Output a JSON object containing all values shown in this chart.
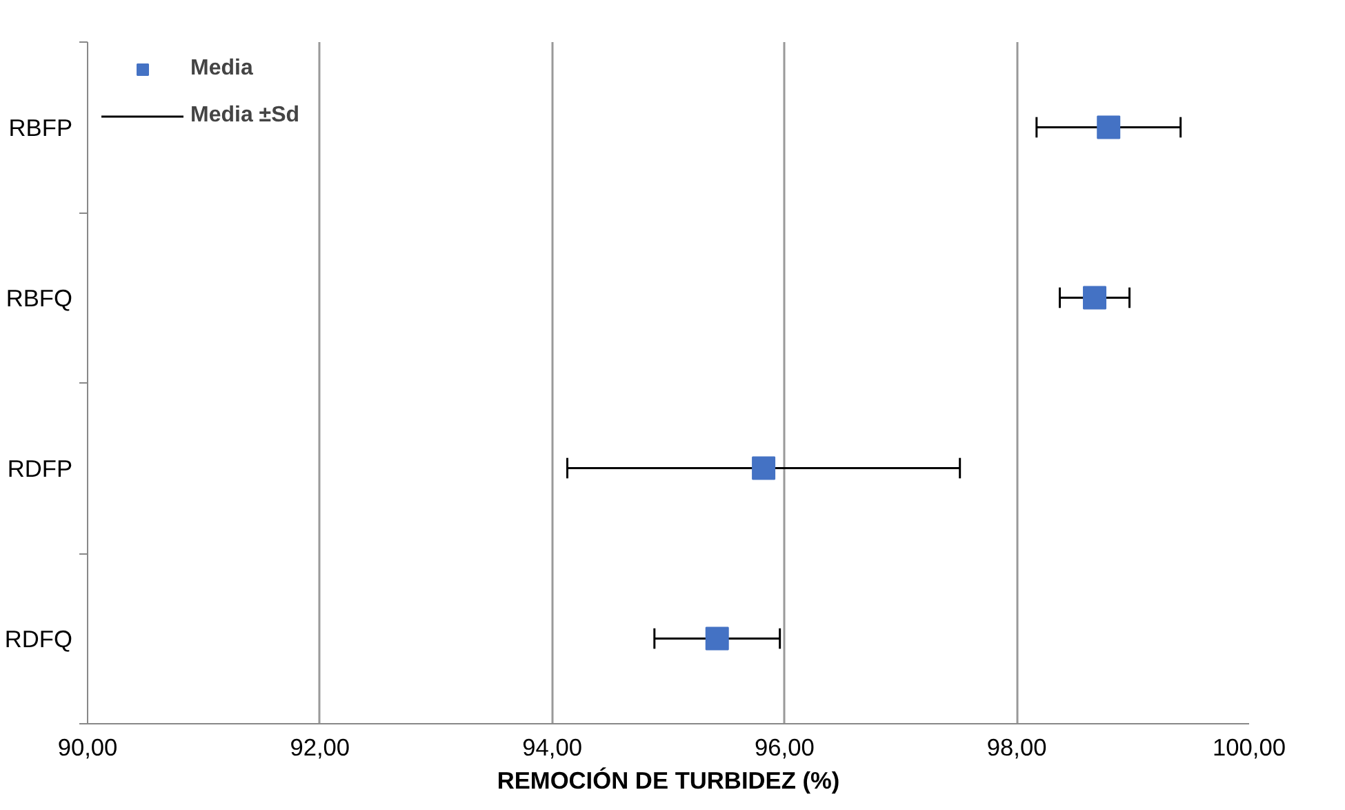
{
  "chart_data": {
    "type": "scatter",
    "orientation": "horizontal",
    "xlabel": "REMOCIÓN DE TURBIDEZ (%)",
    "categories": [
      "RBFP",
      "RBFQ",
      "RDFP",
      "RDFQ"
    ],
    "series": [
      {
        "name": "Media",
        "color": "#4472c4",
        "values": [
          98.79,
          98.67,
          95.82,
          95.42
        ],
        "errors": [
          0.62,
          0.3,
          1.69,
          0.54
        ]
      }
    ],
    "xlim": [
      90,
      100
    ],
    "xticks": [
      {
        "value": 90,
        "label": "90,00"
      },
      {
        "value": 92,
        "label": "92,00"
      },
      {
        "value": 94,
        "label": "94,00"
      },
      {
        "value": 96,
        "label": "96,00"
      },
      {
        "value": 98,
        "label": "98,00"
      },
      {
        "value": 100,
        "label": "100,00"
      }
    ],
    "annotations": [
      "Media ±Sd"
    ],
    "marker": "square",
    "grid": "x",
    "legend": "top left"
  }
}
